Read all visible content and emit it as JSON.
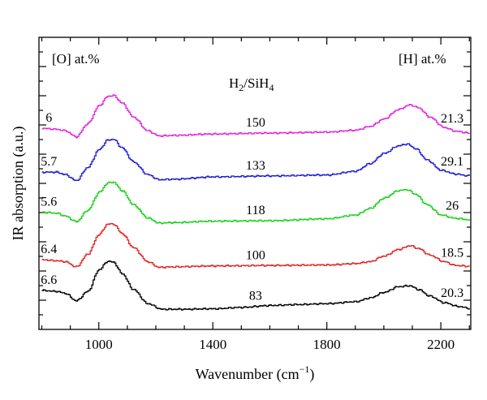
{
  "chart_data": {
    "type": "line",
    "xlabel": "Wavenumber (cm",
    "xlabel_sup": "−1",
    "xlabel_close": ")",
    "ylabel": "IR absorption (a.u.)",
    "xlim": [
      790,
      2305
    ],
    "x_ticks": [
      1000,
      1400,
      1800,
      2200
    ],
    "grid": false,
    "y_axis_tick_labels": false,
    "left_header": "[O] at.%",
    "right_header": "[H] at.%",
    "middle_header": {
      "base1": "H",
      "sub1": "2",
      "mid": "/SiH",
      "sub2": "4"
    },
    "series": [
      {
        "ratio_label": "150",
        "O_label": "6",
        "H_label": "21.3",
        "color": "#e020e0",
        "offset": 4.0,
        "x": [
          800,
          850,
          880,
          920,
          960,
          1000,
          1030,
          1050,
          1080,
          1120,
          1170,
          1210,
          1260,
          1400,
          1600,
          1800,
          1900,
          1950,
          2000,
          2050,
          2090,
          2120,
          2160,
          2210,
          2250,
          2300
        ],
        "y": [
          0.1,
          0.08,
          0.05,
          -0.08,
          0.2,
          0.58,
          0.78,
          0.8,
          0.64,
          0.34,
          0.05,
          -0.06,
          -0.05,
          -0.02,
          0.0,
          0.02,
          0.06,
          0.14,
          0.3,
          0.5,
          0.6,
          0.54,
          0.34,
          0.12,
          0.04,
          0.0
        ]
      },
      {
        "ratio_label": "133",
        "O_label": "5.7",
        "H_label": "29.1",
        "color": "#1a1ad0",
        "offset": 3.0,
        "x": [
          800,
          850,
          880,
          920,
          960,
          1000,
          1030,
          1050,
          1080,
          1120,
          1170,
          1210,
          1260,
          1400,
          1600,
          1800,
          1900,
          1950,
          2000,
          2050,
          2080,
          2110,
          2150,
          2200,
          2250,
          2300
        ],
        "y": [
          0.1,
          0.1,
          0.05,
          -0.08,
          0.2,
          0.58,
          0.78,
          0.8,
          0.62,
          0.32,
          0.05,
          -0.06,
          -0.05,
          0.0,
          0.02,
          0.04,
          0.12,
          0.28,
          0.5,
          0.66,
          0.7,
          0.6,
          0.36,
          0.14,
          0.06,
          0.02
        ]
      },
      {
        "ratio_label": "118",
        "O_label": "5.6",
        "H_label": "26",
        "color": "#14d014",
        "offset": 2.0,
        "x": [
          800,
          850,
          880,
          920,
          960,
          1000,
          1030,
          1050,
          1080,
          1120,
          1170,
          1210,
          1260,
          1400,
          1600,
          1800,
          1900,
          1950,
          2000,
          2050,
          2080,
          2110,
          2150,
          2200,
          2250,
          2300
        ],
        "y": [
          0.18,
          0.16,
          0.1,
          -0.02,
          0.22,
          0.6,
          0.8,
          0.82,
          0.64,
          0.34,
          0.06,
          -0.05,
          -0.04,
          -0.01,
          0.0,
          0.04,
          0.12,
          0.26,
          0.48,
          0.64,
          0.66,
          0.56,
          0.34,
          0.12,
          0.05,
          0.02
        ]
      },
      {
        "ratio_label": "100",
        "O_label": "6.4",
        "H_label": "18.5",
        "color": "#e02020",
        "offset": 1.0,
        "x": [
          800,
          850,
          880,
          920,
          960,
          1000,
          1030,
          1050,
          1080,
          1120,
          1170,
          1210,
          1260,
          1400,
          1600,
          1800,
          1900,
          1950,
          2000,
          2050,
          2090,
          2120,
          2160,
          2210,
          2250,
          2300
        ],
        "y": [
          0.1,
          0.08,
          0.06,
          -0.05,
          0.22,
          0.64,
          0.86,
          0.86,
          0.66,
          0.36,
          0.06,
          -0.06,
          -0.05,
          -0.03,
          -0.02,
          -0.01,
          0.02,
          0.06,
          0.18,
          0.32,
          0.4,
          0.34,
          0.2,
          0.06,
          -0.02,
          -0.04
        ]
      },
      {
        "ratio_label": "83",
        "O_label": "6.6",
        "H_label": "20.3",
        "color": "#000000",
        "offset": 0.0,
        "x": [
          800,
          850,
          880,
          920,
          960,
          1000,
          1030,
          1050,
          1080,
          1120,
          1170,
          1220,
          1300,
          1400,
          1500,
          1600,
          1700,
          1800,
          1900,
          1950,
          2000,
          2050,
          2090,
          2120,
          2160,
          2210,
          2260,
          2300
        ],
        "y": [
          0.38,
          0.36,
          0.32,
          0.16,
          0.36,
          0.82,
          1.0,
          0.98,
          0.74,
          0.4,
          0.1,
          -0.02,
          -0.02,
          -0.01,
          0.02,
          0.06,
          0.08,
          0.1,
          0.14,
          0.22,
          0.34,
          0.46,
          0.48,
          0.4,
          0.26,
          0.12,
          0.04,
          0.0
        ]
      }
    ]
  }
}
